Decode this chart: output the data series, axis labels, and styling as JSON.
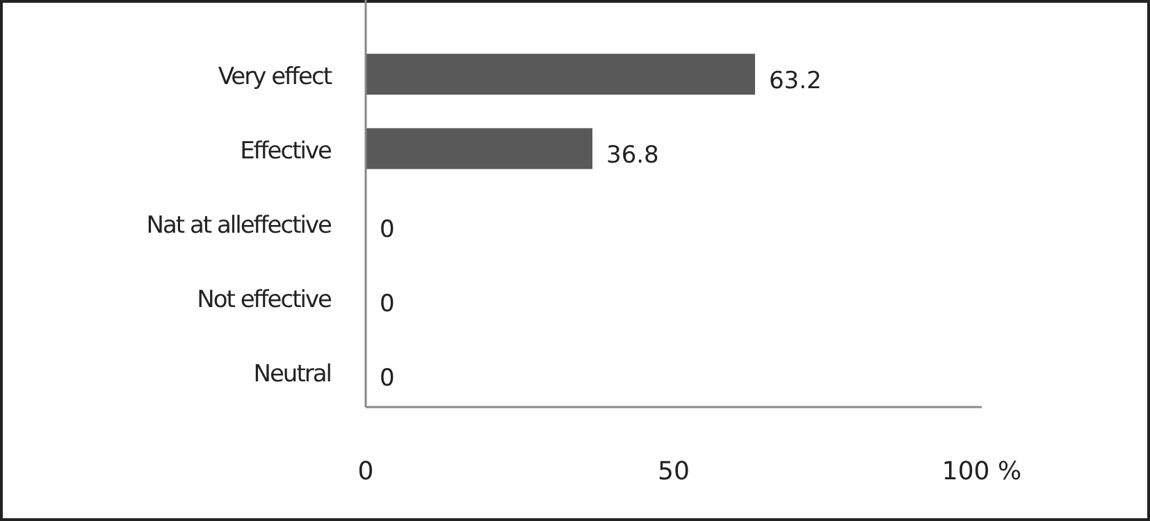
{
  "chart_data": {
    "type": "bar",
    "orientation": "horizontal",
    "categories": [
      "Very effect",
      "Effective",
      "Nat at alleffective",
      "Not effective",
      "Neutral"
    ],
    "values": [
      63.2,
      36.8,
      0,
      0,
      0
    ],
    "color": "#595959",
    "xlim": [
      0,
      100
    ],
    "xticks": [
      0,
      50,
      {
        "value": 100,
        "label": "100 %"
      }
    ],
    "data_labels": true,
    "grid": false
  }
}
